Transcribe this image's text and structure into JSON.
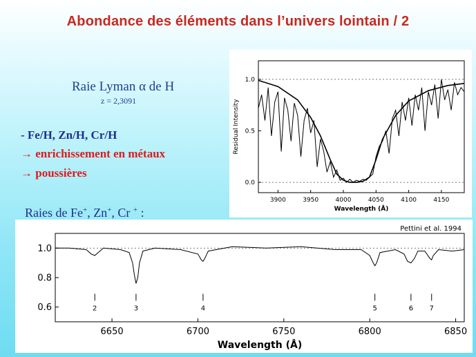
{
  "slide": {
    "title": "Abondance des éléments dans l’univers lointain / 2",
    "lyman_label": "Raie Lyman α de H",
    "redshift": "z = 2,3091",
    "bullet1": "- Fe/H, Zn/H, Cr/H",
    "bullet2": "→ enrichissement en métaux",
    "bullet3": "→ poussières",
    "raies_prefix": "Raies de Fe",
    "raies_sep1": ", Zn",
    "raies_sep2": ", Cr ",
    "raies_sup": "+",
    "raies_suffix": " :"
  },
  "chart_data": [
    {
      "type": "line",
      "title": "",
      "xlabel": "Wavelength (Å)",
      "ylabel": "Residual Intensity",
      "xlim": [
        3870,
        4185
      ],
      "ylim": [
        -0.1,
        1.18
      ],
      "xticks": [
        "3900",
        "3950",
        "4000",
        "4050",
        "4100",
        "4150"
      ],
      "yticks": [
        "0.0",
        "0.5",
        "1.0"
      ],
      "grid": false,
      "reference_lines": [
        0.0,
        1.0
      ],
      "series": [
        {
          "style": "continuum-fit",
          "x": [
            3870,
            3900,
            3930,
            3950,
            3965,
            3980,
            3990,
            4000,
            4010,
            4020,
            4030,
            4040,
            4050,
            4060,
            4080,
            4100,
            4130,
            4160,
            4185
          ],
          "y": [
            0.99,
            0.93,
            0.8,
            0.63,
            0.45,
            0.22,
            0.08,
            0.02,
            0.0,
            0.0,
            0.01,
            0.05,
            0.22,
            0.42,
            0.65,
            0.79,
            0.89,
            0.94,
            0.96
          ]
        },
        {
          "style": "spectrum",
          "x": [
            3870,
            3875,
            3880,
            3885,
            3890,
            3895,
            3900,
            3905,
            3910,
            3915,
            3920,
            3925,
            3930,
            3935,
            3940,
            3945,
            3950,
            3955,
            3960,
            3965,
            3970,
            3975,
            3980,
            3985,
            3990,
            3995,
            4000,
            4005,
            4010,
            4015,
            4020,
            4025,
            4030,
            4035,
            4040,
            4045,
            4050,
            4055,
            4060,
            4065,
            4070,
            4075,
            4080,
            4085,
            4090,
            4095,
            4100,
            4105,
            4110,
            4115,
            4120,
            4125,
            4130,
            4135,
            4140,
            4145,
            4150,
            4155,
            4160,
            4165,
            4170,
            4175,
            4180,
            4185
          ],
          "y": [
            0.72,
            0.85,
            0.6,
            0.92,
            0.45,
            0.78,
            0.88,
            0.3,
            0.82,
            0.7,
            0.4,
            0.77,
            0.65,
            0.25,
            0.6,
            0.72,
            0.48,
            0.6,
            0.15,
            0.42,
            0.3,
            0.1,
            0.2,
            0.05,
            0.12,
            0.02,
            0.04,
            0.0,
            0.03,
            0.0,
            0.02,
            0.01,
            0.03,
            0.02,
            0.05,
            0.08,
            0.25,
            0.35,
            0.4,
            0.5,
            0.28,
            0.62,
            0.7,
            0.45,
            0.78,
            0.6,
            0.82,
            0.55,
            0.85,
            0.7,
            0.92,
            0.5,
            0.88,
            0.75,
            0.95,
            0.62,
            1.0,
            0.8,
            0.9,
            0.7,
            0.97,
            0.85,
            0.92,
            0.88
          ]
        }
      ]
    },
    {
      "type": "line",
      "title": "Pettini et al. 1994",
      "xlabel": "Wavelength (Å)",
      "ylabel": "",
      "xlim": [
        6617,
        6855
      ],
      "ylim": [
        0.5,
        1.1
      ],
      "xticks": [
        "6650",
        "6700",
        "6750",
        "6800",
        "6850"
      ],
      "yticks": [
        "0.6",
        "0.8",
        "1.0"
      ],
      "grid": false,
      "reference_lines": [
        1.0
      ],
      "line_markers": [
        {
          "label": "2",
          "x": 6640
        },
        {
          "label": "3",
          "x": 6664
        },
        {
          "label": "4",
          "x": 6703
        },
        {
          "label": "5",
          "x": 6803
        },
        {
          "label": "6",
          "x": 6824
        },
        {
          "label": "7",
          "x": 6836
        }
      ],
      "series": [
        {
          "style": "spectrum",
          "x": [
            6617,
            6625,
            6635,
            6638,
            6640,
            6642,
            6645,
            6655,
            6660,
            6662,
            6663,
            6664,
            6665,
            6666,
            6668,
            6675,
            6690,
            6700,
            6702,
            6703,
            6704,
            6706,
            6720,
            6740,
            6760,
            6780,
            6795,
            6800,
            6802,
            6803,
            6804,
            6806,
            6815,
            6820,
            6822,
            6824,
            6826,
            6828,
            6832,
            6835,
            6836,
            6837,
            6840,
            6848,
            6855
          ],
          "y": [
            1.0,
            1.0,
            0.99,
            0.96,
            0.95,
            0.97,
            1.0,
            0.99,
            0.97,
            0.9,
            0.82,
            0.76,
            0.8,
            0.9,
            0.98,
            1.0,
            0.99,
            0.96,
            0.92,
            0.91,
            0.93,
            0.98,
            1.01,
            1.0,
            1.01,
            0.99,
            0.99,
            0.95,
            0.9,
            0.88,
            0.9,
            0.97,
            0.99,
            0.96,
            0.91,
            0.9,
            0.93,
            0.98,
            0.98,
            0.93,
            0.92,
            0.95,
            0.99,
            0.98,
            0.99
          ]
        }
      ]
    }
  ]
}
